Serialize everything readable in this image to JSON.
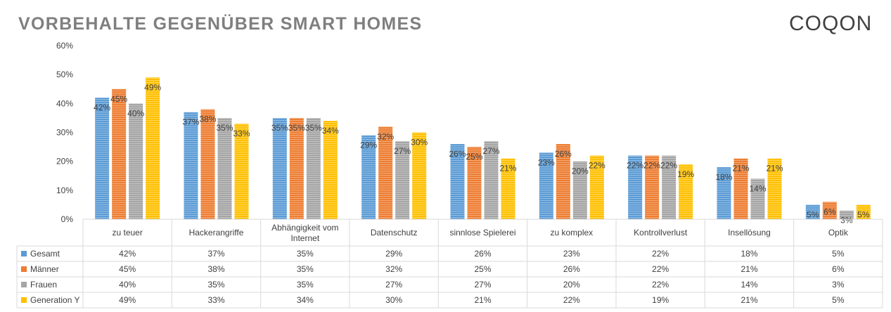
{
  "title": "VORBEHALTE GEGENÜBER SMART HOMES",
  "logo_text": "COQON",
  "colors": {
    "Gesamt": "#5b9bd5",
    "Männer": "#ed7d31",
    "Frauen": "#a5a5a5",
    "Generation Y": "#ffc000",
    "grid": "#d9d9d9",
    "text": "#404040",
    "title": "#7f7f7f"
  },
  "chart_data": {
    "type": "bar",
    "title": "VORBEHALTE GEGENÜBER SMART HOMES",
    "xlabel": "",
    "ylabel": "",
    "ylim": [
      0,
      60
    ],
    "yticks": [
      "0%",
      "10%",
      "20%",
      "30%",
      "40%",
      "50%",
      "60%"
    ],
    "categories": [
      "zu teuer",
      "Hackerangriffe",
      "Abhängigkeit vom Internet",
      "Datenschutz",
      "sinnlose Spielerei",
      "zu komplex",
      "Kontrollverlust",
      "Insellösung",
      "Optik"
    ],
    "series": [
      {
        "name": "Gesamt",
        "values": [
          42,
          37,
          35,
          29,
          26,
          23,
          22,
          18,
          5
        ]
      },
      {
        "name": "Männer",
        "values": [
          45,
          38,
          35,
          32,
          25,
          26,
          22,
          21,
          6
        ]
      },
      {
        "name": "Frauen",
        "values": [
          40,
          35,
          35,
          27,
          27,
          20,
          22,
          14,
          3
        ]
      },
      {
        "name": "Generation Y",
        "values": [
          49,
          33,
          34,
          30,
          21,
          22,
          19,
          21,
          5
        ]
      }
    ],
    "value_suffix": "%",
    "legend": "data table below chart",
    "grid": false
  }
}
